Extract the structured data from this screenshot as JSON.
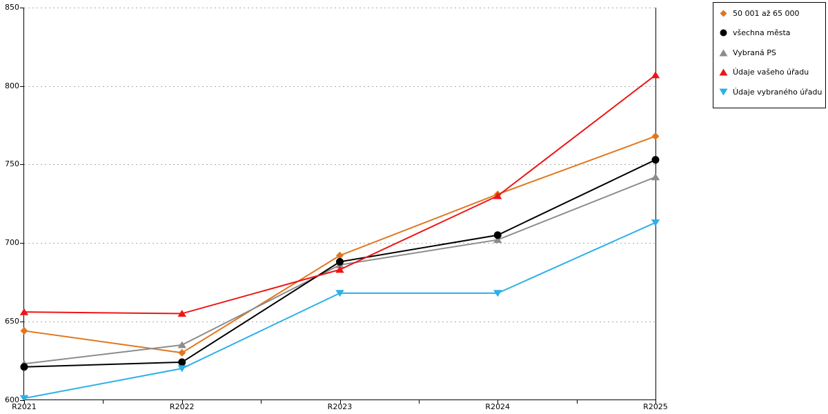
{
  "chart_data": {
    "type": "line",
    "title": "",
    "categories": [
      "R2021",
      "R2022",
      "R2023",
      "R2024",
      "R2025"
    ],
    "series": [
      {
        "name": "50 001 až 65 000",
        "marker": "diamond",
        "color": "#E1761D",
        "zorder": 1,
        "values": [
          644,
          630,
          692,
          731,
          768
        ]
      },
      {
        "name": "všechna města",
        "marker": "circle",
        "color": "#000000",
        "zorder": 3,
        "values": [
          621,
          624,
          688,
          705,
          753
        ]
      },
      {
        "name": "Vybraná PS",
        "marker": "triangle-up",
        "color": "#8C8C8C",
        "zorder": 2,
        "values": [
          623,
          635,
          686,
          702,
          742
        ]
      },
      {
        "name": "Údaje vašeho úřadu",
        "marker": "triangle-up",
        "color": "#ED1515",
        "zorder": 4,
        "values": [
          656,
          655,
          683,
          730,
          807
        ]
      },
      {
        "name": "Údaje vybraného úřadu",
        "marker": "triangle-down",
        "color": "#2BB0E8",
        "zorder": 5,
        "values": [
          601,
          620,
          668,
          668,
          713
        ]
      }
    ],
    "xlabel": "",
    "ylabel": "",
    "ylim": [
      600,
      850
    ],
    "yticks": [
      600,
      650,
      700,
      750,
      800,
      850
    ],
    "grid": "horizontal-dotted",
    "gridline_color": "#AAAAAA",
    "axis_color": "#000000",
    "line_width": 2,
    "legend_position": "top-right"
  }
}
